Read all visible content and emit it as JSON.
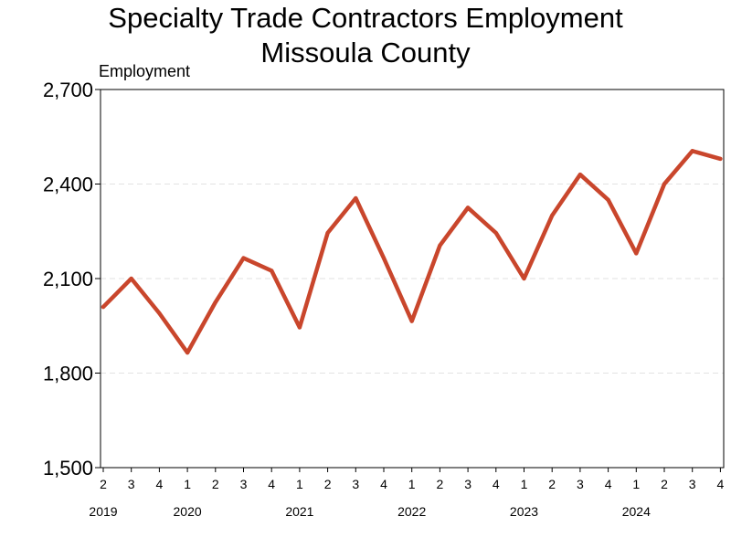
{
  "chart_data": {
    "type": "line",
    "title": "Specialty Trade Contractors Employment",
    "subtitle": "Missoula County",
    "ylabel": "Employment",
    "xlabel": "",
    "ylim": [
      1500,
      2700
    ],
    "yticks": [
      "1,500",
      "1,800",
      "2,100",
      "2,400",
      "2,700"
    ],
    "grid": true,
    "x": [
      "2019 Q2",
      "2019 Q3",
      "2019 Q4",
      "2020 Q1",
      "2020 Q2",
      "2020 Q3",
      "2020 Q4",
      "2021 Q1",
      "2021 Q2",
      "2021 Q3",
      "2021 Q4",
      "2022 Q1",
      "2022 Q2",
      "2022 Q3",
      "2022 Q4",
      "2023 Q1",
      "2023 Q2",
      "2023 Q3",
      "2023 Q4",
      "2024 Q1",
      "2024 Q2",
      "2024 Q3",
      "2024 Q4"
    ],
    "quarter_labels": [
      "2",
      "3",
      "4",
      "1",
      "2",
      "3",
      "4",
      "1",
      "2",
      "3",
      "4",
      "1",
      "2",
      "3",
      "4",
      "1",
      "2",
      "3",
      "4",
      "1",
      "2",
      "3",
      "4"
    ],
    "year_labels": [
      {
        "label": "2019",
        "index": 0
      },
      {
        "label": "2020",
        "index": 3
      },
      {
        "label": "2021",
        "index": 7
      },
      {
        "label": "2022",
        "index": 11
      },
      {
        "label": "2023",
        "index": 15
      },
      {
        "label": "2024",
        "index": 19
      }
    ],
    "series": [
      {
        "color": "#c9462c",
        "values": [
          2010,
          2100,
          1990,
          1865,
          2025,
          2165,
          2125,
          1945,
          2245,
          2355,
          2165,
          1965,
          2205,
          2325,
          2245,
          2100,
          2300,
          2430,
          2350,
          2180,
          2400,
          2505,
          2480
        ]
      }
    ]
  }
}
